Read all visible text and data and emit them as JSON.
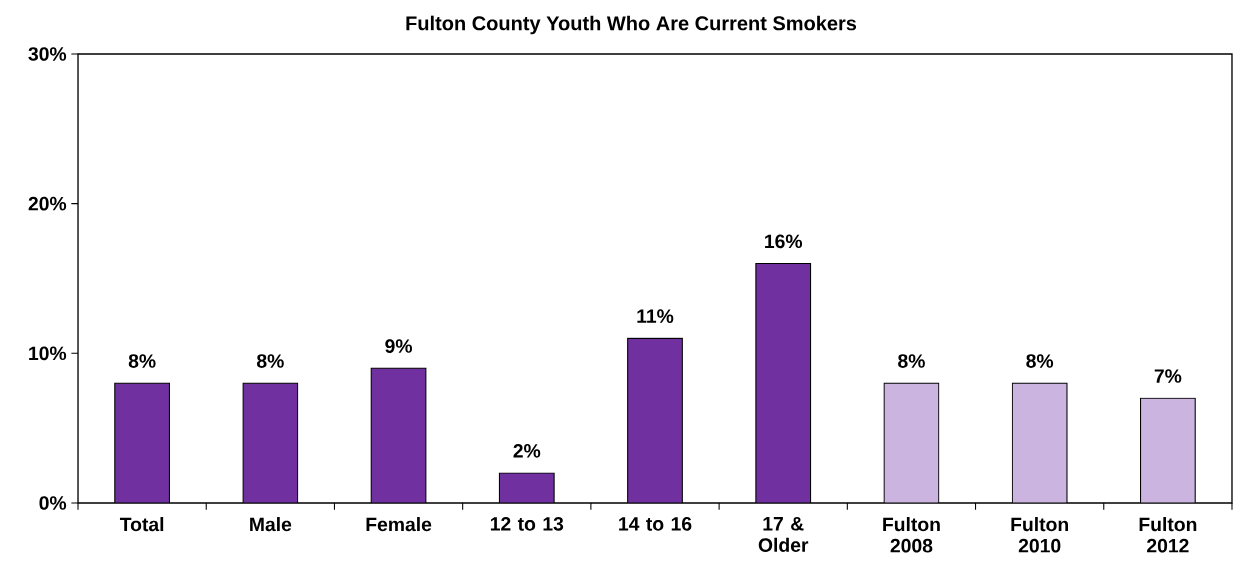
{
  "chart_data": {
    "type": "bar",
    "title": "Fulton County Youth Who Are Current Smokers",
    "categories": [
      "Total",
      "Male",
      "Female",
      "12 to 13",
      "14 to 16",
      "17 & Older",
      "Fulton 2008",
      "Fulton 2010",
      "Fulton 2012"
    ],
    "values": [
      8,
      8,
      9,
      2,
      11,
      16,
      8,
      8,
      7
    ],
    "colors": [
      "#7030a0",
      "#7030a0",
      "#7030a0",
      "#7030a0",
      "#7030a0",
      "#7030a0",
      "#cbb5e0",
      "#cbb5e0",
      "#cbb5e0"
    ],
    "value_labels": [
      "8%",
      "8%",
      "9%",
      "2%",
      "11%",
      "16%",
      "8%",
      "8%",
      "7%"
    ],
    "ylim": [
      0,
      30
    ],
    "yticks": [
      {
        "value": 0,
        "label": "0%"
      },
      {
        "value": 10,
        "label": "10%"
      },
      {
        "value": 20,
        "label": "20%"
      },
      {
        "value": 30,
        "label": "30%"
      }
    ]
  }
}
